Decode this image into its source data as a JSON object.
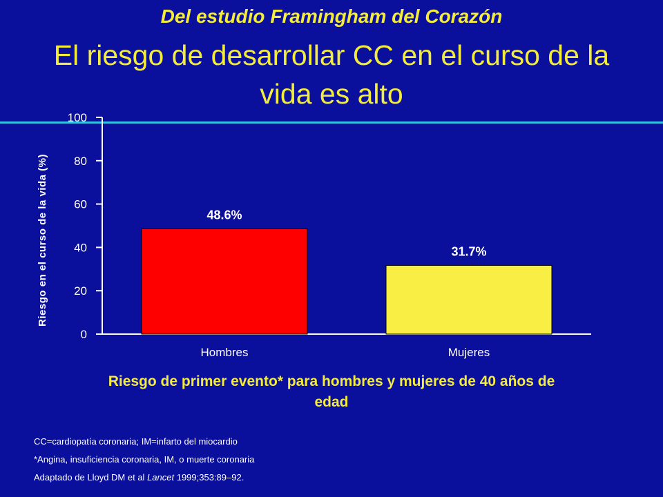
{
  "slide": {
    "subtitle": "Del estudio Framingham del Corazón",
    "title": "El riesgo de desarrollar CC en el curso de la vida es alto",
    "caption": "Riesgo de primer evento* para hombres y mujeres de 40 años de edad",
    "notes": {
      "line1": "CC=cardiopatía coronaria; IM=infarto del miocardio",
      "line2": "*Angina, insuficiencia coronaria, IM, o muerte coronaria",
      "line3_prefix": "Adaptado de Lloyd DM et al ",
      "line3_journal": "Lancet",
      "line3_suffix": " 1999;353:89–92."
    }
  },
  "colors": {
    "background": "#0a0f9c",
    "title": "#f4ec3c",
    "rule": "#35c2e8",
    "axis": "#ffffff",
    "bar_hombres": "#ff0000",
    "bar_mujeres": "#f8ee44"
  },
  "chart_data": {
    "type": "bar",
    "categories": [
      "Hombres",
      "Mujeres"
    ],
    "values": [
      48.6,
      31.7
    ],
    "data_labels": [
      "48.6%",
      "31.7%"
    ],
    "bar_colors": [
      "#ff0000",
      "#f8ee44"
    ],
    "ylabel": "Riesgo en el curso de la vida (%)",
    "xlabel": "",
    "ylim": [
      0,
      100
    ],
    "yticks": [
      0,
      20,
      40,
      60,
      80,
      100
    ],
    "grid": false
  }
}
